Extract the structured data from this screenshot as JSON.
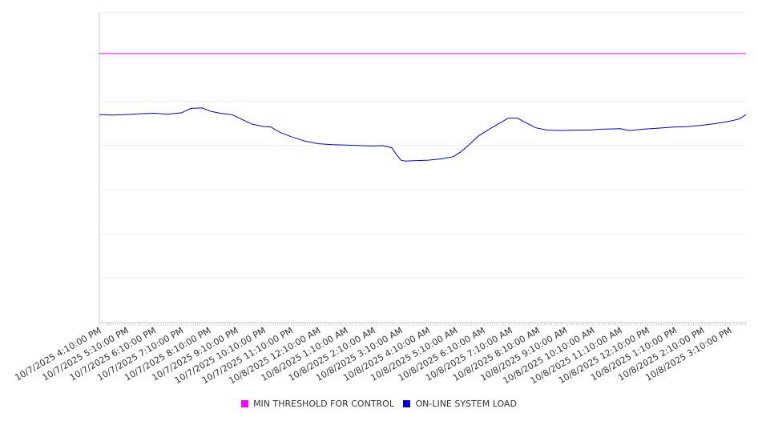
{
  "chart_data": {
    "type": "line",
    "title": "",
    "xlabel": "",
    "ylabel": "",
    "x_range": [
      "10/7/2025 4:10:00 PM",
      "10/8/2025 3:45:00 PM"
    ],
    "x_tick_labels": [
      "10/7/2025 4:10:00 PM",
      "10/7/2025 5:10:00 PM",
      "10/7/2025 6:10:00 PM",
      "10/7/2025 7:10:00 PM",
      "10/7/2025 8:10:00 PM",
      "10/7/2025 9:10:00 PM",
      "10/7/2025 10:10:00 PM",
      "10/7/2025 11:10:00 PM",
      "10/8/2025 12:10:00 AM",
      "10/8/2025 1:10:00 AM",
      "10/8/2025 2:10:00 AM",
      "10/8/2025 3:10:00 AM",
      "10/8/2025 4:10:00 AM",
      "10/8/2025 5:10:00 AM",
      "10/8/2025 6:10:00 AM",
      "10/8/2025 7:10:00 AM",
      "10/8/2025 8:10:00 AM",
      "10/8/2025 9:10:00 AM",
      "10/8/2025 10:10:00 AM",
      "10/8/2025 11:10:00 AM",
      "10/8/2025 12:10:00 PM",
      "10/8/2025 1:10:00 PM",
      "10/8/2025 2:10:00 PM",
      "10/8/2025 3:10:00 PM"
    ],
    "y_tick_labels": [],
    "ylim": [
      0,
      7
    ],
    "grid": {
      "horizontal": true,
      "vertical": false
    },
    "legend_position": "bottom-center",
    "series": [
      {
        "name": "MIN THRESHOLD FOR CONTROL",
        "color": "#ff00ff",
        "x": [
          "10/7/2025 4:10:00 PM",
          "10/8/2025 3:45:00 PM"
        ],
        "y": [
          6.08,
          6.08
        ]
      },
      {
        "name": "ON-LINE SYSTEM LOAD",
        "color": "#0000dd",
        "x": [
          "10/7/2025 4:10:00 PM",
          "10/7/2025 4:35:00 PM",
          "10/7/2025 5:05:00 PM",
          "10/7/2025 5:40:00 PM",
          "10/7/2025 6:10:00 PM",
          "10/7/2025 6:40:00 PM",
          "10/7/2025 7:10:00 PM",
          "10/7/2025 7:30:00 PM",
          "10/7/2025 7:55:00 PM",
          "10/7/2025 8:15:00 PM",
          "10/7/2025 8:35:00 PM",
          "10/7/2025 9:00:00 PM",
          "10/7/2025 9:20:00 PM",
          "10/7/2025 9:45:00 PM",
          "10/7/2025 10:10:00 PM",
          "10/7/2025 10:25:00 PM",
          "10/7/2025 10:45:00 PM",
          "10/7/2025 11:10:00 PM",
          "10/7/2025 11:40:00 PM",
          "10/8/2025 12:10:00 AM",
          "10/8/2025 12:40:00 AM",
          "10/8/2025 1:10:00 AM",
          "10/8/2025 1:40:00 AM",
          "10/8/2025 2:10:00 AM",
          "10/8/2025 2:30:00 AM",
          "10/8/2025 2:50:00 AM",
          "10/8/2025 3:00:00 AM",
          "10/8/2025 3:10:00 AM",
          "10/8/2025 3:20:00 AM",
          "10/8/2025 3:40:00 AM",
          "10/8/2025 4:10:00 AM",
          "10/8/2025 4:40:00 AM",
          "10/8/2025 5:05:00 AM",
          "10/8/2025 5:20:00 AM",
          "10/8/2025 5:40:00 AM",
          "10/8/2025 6:00:00 AM",
          "10/8/2025 6:25:00 AM",
          "10/8/2025 6:45:00 AM",
          "10/8/2025 7:05:00 AM",
          "10/8/2025 7:25:00 AM",
          "10/8/2025 7:50:00 AM",
          "10/8/2025 8:05:00 AM",
          "10/8/2025 8:30:00 AM",
          "10/8/2025 9:00:00 AM",
          "10/8/2025 9:30:00 AM",
          "10/8/2025 10:00:00 AM",
          "10/8/2025 10:30:00 AM",
          "10/8/2025 11:10:00 AM",
          "10/8/2025 11:30:00 AM",
          "10/8/2025 12:00:00 PM",
          "10/8/2025 12:30:00 PM",
          "10/8/2025 1:10:00 PM",
          "10/8/2025 1:40:00 PM",
          "10/8/2025 2:10:00 PM",
          "10/8/2025 2:40:00 PM",
          "10/8/2025 3:10:00 PM",
          "10/8/2025 3:30:00 PM",
          "10/8/2025 3:45:00 PM"
        ],
        "y": [
          4.7,
          4.69,
          4.7,
          4.72,
          4.73,
          4.71,
          4.74,
          4.84,
          4.85,
          4.77,
          4.73,
          4.7,
          4.6,
          4.48,
          4.43,
          4.42,
          4.3,
          4.2,
          4.1,
          4.04,
          4.02,
          4.01,
          4.0,
          3.99,
          4.0,
          3.95,
          3.8,
          3.67,
          3.65,
          3.66,
          3.67,
          3.7,
          3.75,
          3.85,
          4.03,
          4.22,
          4.38,
          4.5,
          4.62,
          4.62,
          4.48,
          4.4,
          4.35,
          4.34,
          4.35,
          4.35,
          4.37,
          4.38,
          4.34,
          4.37,
          4.39,
          4.42,
          4.43,
          4.46,
          4.5,
          4.55,
          4.6,
          4.7
        ]
      }
    ]
  },
  "legend": {
    "items": [
      {
        "label": "MIN THRESHOLD FOR CONTROL",
        "color": "#ff00ff"
      },
      {
        "label": "ON-LINE SYSTEM LOAD",
        "color": "#0000dd"
      }
    ]
  }
}
